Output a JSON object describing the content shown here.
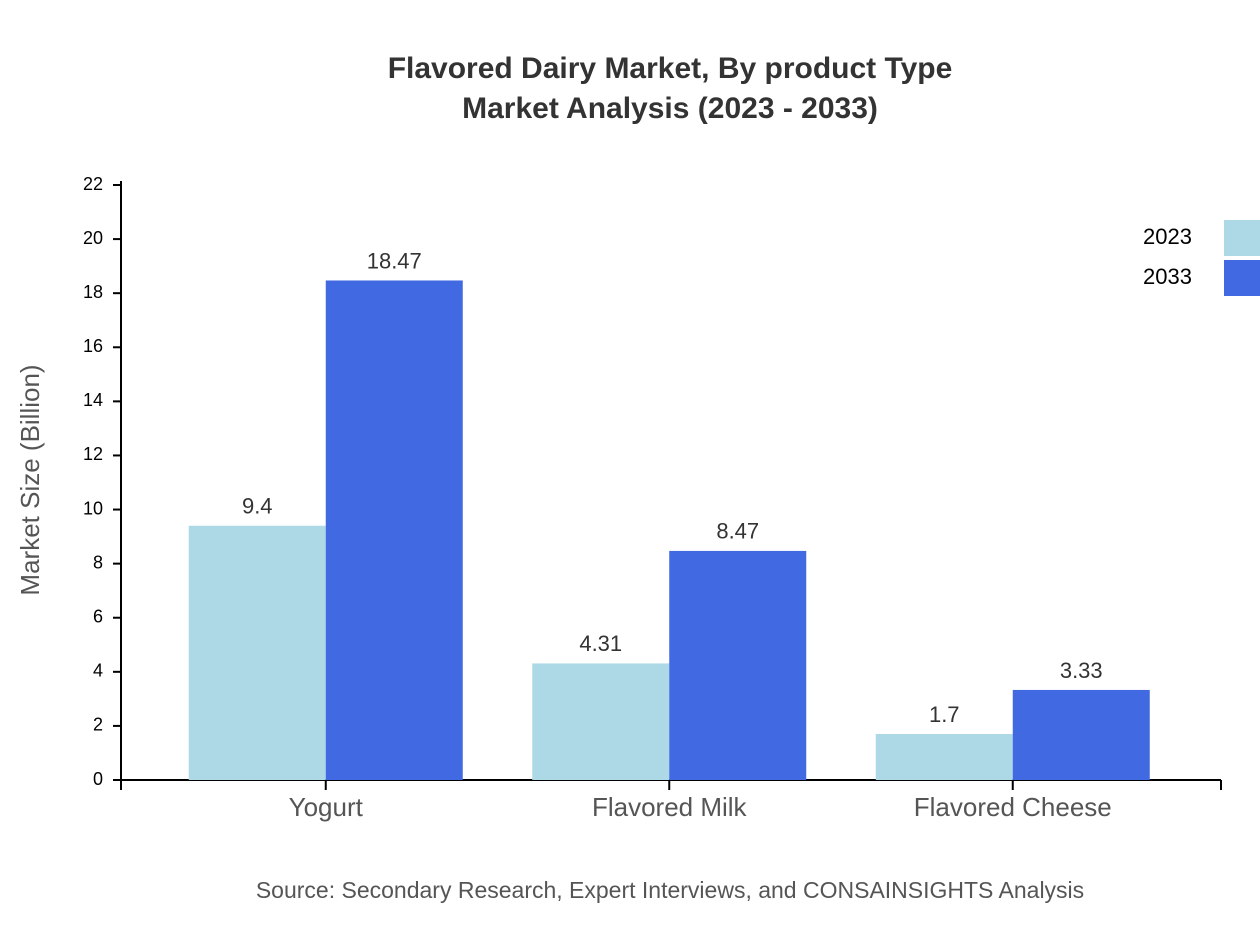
{
  "chart_data": {
    "type": "grouped-bar",
    "title": "Flavored Dairy Market, By product Type",
    "subtitle": "Market Analysis (2023 - 2033)",
    "y_label": "Market Size (Billion)",
    "source": "Source: Secondary Research, Expert Interviews, and CONSAINSIGHTS Analysis",
    "categories": [
      "Yogurt",
      "Flavored Milk",
      "Flavored Cheese"
    ],
    "series": [
      {
        "name": "2023",
        "color": "#add8e6",
        "values": [
          9.4,
          4.31,
          1.7
        ]
      },
      {
        "name": "2033",
        "color": "#4169e1",
        "values": [
          18.47,
          8.47,
          3.33
        ]
      }
    ],
    "ylim": [
      0,
      22
    ],
    "yticks": [
      0,
      2,
      4,
      6,
      8,
      10,
      12,
      14,
      16,
      18,
      20,
      22
    ],
    "legend": "top-right"
  }
}
